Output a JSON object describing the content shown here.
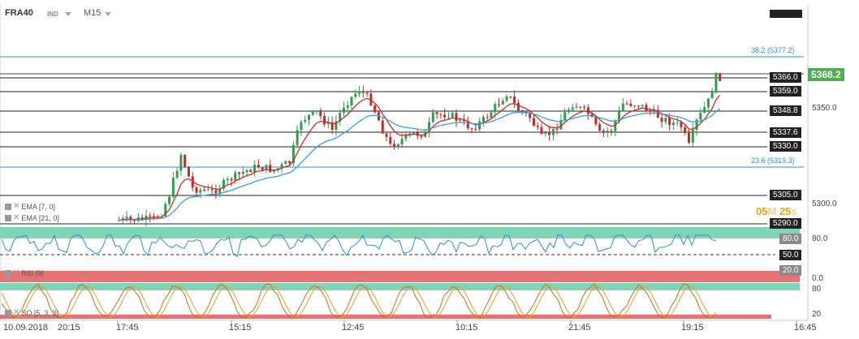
{
  "header": {
    "symbol": "FRA40",
    "type": "IND",
    "timeframe": "M15"
  },
  "timer": {
    "minutes": "05",
    "m_label": "M",
    "seconds": "25",
    "s_label": "s"
  },
  "price_axis": {
    "current": "5368.2",
    "ticks": [
      "5350.0",
      "5300.0"
    ],
    "levels": [
      "5366.0",
      "5359.0",
      "5348.8",
      "5337.6",
      "5330.0",
      "5305.0",
      "5290.0"
    ],
    "fib_high": "38.2 (5377.2)",
    "fib_low": "23.6 (5319.3)"
  },
  "indicators": {
    "ema7": {
      "label": "EMA [7, 0]",
      "color": "#cc2a2a"
    },
    "ema21": {
      "label": "EMA [21, 0]",
      "color": "#35a0e0"
    },
    "rsi": {
      "label": "RSI [9]",
      "levels": [
        "80.0",
        "50.0",
        "20.0"
      ],
      "axis": [
        "80.0",
        "0.0"
      ]
    },
    "so": {
      "label": "SO [5, 3, 3]",
      "axis": [
        "80",
        "20"
      ]
    }
  },
  "time_axis": [
    "10.09.2018",
    "20:15",
    "17:45",
    "15:15",
    "12:45",
    "10:15",
    "21:45",
    "19:15",
    "16:45"
  ],
  "colors": {
    "bull": "#2e9e4f",
    "bear": "#c62828",
    "band_green": "#7fd6b5",
    "band_red": "#e57373",
    "level_line": "#222222",
    "fib_line": "#2b8fd6"
  }
}
